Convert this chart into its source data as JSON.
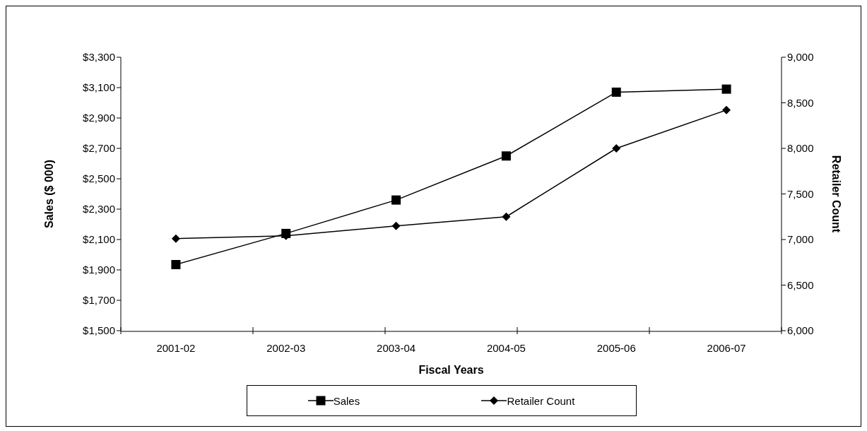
{
  "chart_data": {
    "type": "line",
    "xlabel": "Fiscal Years",
    "ylabel": "Sales ($ 000)",
    "y2label": "Retailer Count",
    "categories": [
      "2001-02",
      "2002-03",
      "2003-04",
      "2004-05",
      "2005-06",
      "2006-07"
    ],
    "series": [
      {
        "name": "Sales",
        "color": "#000000",
        "marker": "square",
        "values": [
          1935,
          2140,
          2360,
          2650,
          3070,
          3090
        ]
      },
      {
        "name": "Retailer Count",
        "color": "#000000",
        "marker": "diamond",
        "axis": "y2",
        "values": [
          7010,
          7040,
          7150,
          7250,
          8000,
          8420
        ]
      }
    ],
    "ylim": [
      1500,
      3300
    ],
    "yticks": [
      {
        "value": 1500,
        "label": "$1,500"
      },
      {
        "value": 1700,
        "label": "$1,700"
      },
      {
        "value": 1900,
        "label": "$1,900"
      },
      {
        "value": 2100,
        "label": "$2,100"
      },
      {
        "value": 2300,
        "label": "$2,300"
      },
      {
        "value": 2500,
        "label": "$2,500"
      },
      {
        "value": 2700,
        "label": "$2,700"
      },
      {
        "value": 2900,
        "label": "$2,900"
      },
      {
        "value": 3100,
        "label": "$3,100"
      },
      {
        "value": 3300,
        "label": "$3,300"
      }
    ],
    "y2lim": [
      6000,
      9000
    ],
    "y2ticks": [
      {
        "value": 6000,
        "label": "6,000"
      },
      {
        "value": 6500,
        "label": "6,500"
      },
      {
        "value": 7000,
        "label": "7,000"
      },
      {
        "value": 7500,
        "label": "7,500"
      },
      {
        "value": 8000,
        "label": "8,000"
      },
      {
        "value": 8500,
        "label": "8,500"
      },
      {
        "value": 9000,
        "label": "9,000"
      }
    ],
    "grid": false,
    "legend": "bottom",
    "line_style": "solid"
  }
}
